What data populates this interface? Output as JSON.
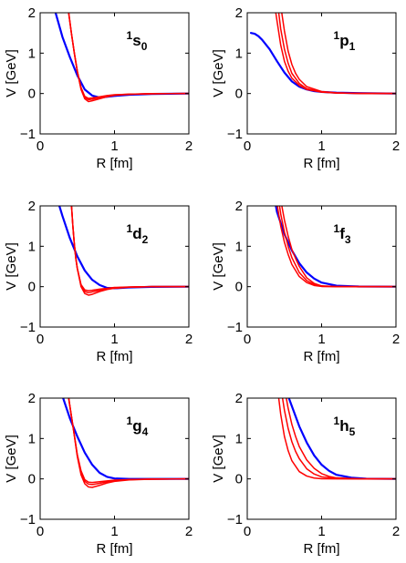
{
  "chart_data": [
    {
      "type": "line",
      "wave": {
        "sup": "1",
        "letter": "s",
        "sub": "0"
      },
      "xlabel": "R [fm]",
      "ylabel": "V [GeV]",
      "xlim": [
        0,
        2
      ],
      "ylim": [
        -1,
        2
      ],
      "xticks": [
        "0",
        "1",
        "2"
      ],
      "yticks": [
        "−1",
        "0",
        "1",
        "2"
      ],
      "grid": false,
      "series": [
        {
          "color": "#0000ff",
          "x": [
            0.2,
            0.3,
            0.4,
            0.5,
            0.6,
            0.7,
            0.8,
            1.0,
            1.2,
            1.5,
            2.0
          ],
          "y": [
            2.05,
            1.4,
            0.9,
            0.45,
            0.1,
            -0.05,
            -0.1,
            -0.06,
            -0.03,
            -0.01,
            0.0
          ]
        },
        {
          "color": "#ff0000",
          "x": [
            0.38,
            0.42,
            0.46,
            0.5,
            0.55,
            0.6,
            0.65,
            0.7,
            0.8,
            0.9,
            1.0,
            1.2,
            1.5,
            2.0
          ],
          "y": [
            2.05,
            1.5,
            1.0,
            0.55,
            0.15,
            -0.07,
            -0.12,
            -0.11,
            -0.08,
            -0.05,
            -0.03,
            -0.015,
            -0.005,
            0.0
          ]
        },
        {
          "color": "#ff0000",
          "x": [
            0.38,
            0.42,
            0.46,
            0.5,
            0.55,
            0.6,
            0.65,
            0.7,
            0.8,
            0.9,
            1.0,
            1.2,
            1.5,
            2.0
          ],
          "y": [
            2.05,
            1.5,
            1.0,
            0.55,
            0.12,
            -0.1,
            -0.15,
            -0.14,
            -0.1,
            -0.06,
            -0.035,
            -0.015,
            -0.005,
            0.0
          ]
        },
        {
          "color": "#ff0000",
          "x": [
            0.38,
            0.42,
            0.46,
            0.5,
            0.55,
            0.6,
            0.65,
            0.7,
            0.8,
            0.9,
            1.0,
            1.2,
            1.5,
            2.0
          ],
          "y": [
            2.05,
            1.5,
            1.0,
            0.55,
            0.1,
            -0.13,
            -0.2,
            -0.18,
            -0.13,
            -0.08,
            -0.045,
            -0.02,
            -0.006,
            0.0
          ]
        }
      ]
    },
    {
      "type": "line",
      "wave": {
        "sup": "1",
        "letter": "p",
        "sub": "1"
      },
      "xlabel": "R [fm]",
      "ylabel": "V [GeV]",
      "xlim": [
        0,
        2
      ],
      "ylim": [
        -1,
        2
      ],
      "xticks": [
        "0",
        "1",
        "2"
      ],
      "yticks": [
        "−1",
        "0",
        "1",
        "2"
      ],
      "grid": false,
      "series": [
        {
          "color": "#0000ff",
          "x": [
            0.05,
            0.1,
            0.15,
            0.2,
            0.3,
            0.4,
            0.5,
            0.6,
            0.7,
            0.8,
            0.9,
            1.0,
            1.2,
            1.5,
            2.0
          ],
          "y": [
            1.5,
            1.48,
            1.42,
            1.33,
            1.1,
            0.8,
            0.52,
            0.3,
            0.17,
            0.1,
            0.06,
            0.04,
            0.02,
            0.01,
            0.0
          ]
        },
        {
          "color": "#ff0000",
          "x": [
            0.38,
            0.4,
            0.45,
            0.5,
            0.55,
            0.6,
            0.7,
            0.8,
            1.0,
            1.2,
            1.5,
            2.0
          ],
          "y": [
            2.05,
            1.8,
            1.2,
            0.8,
            0.55,
            0.38,
            0.2,
            0.1,
            0.035,
            0.012,
            0.003,
            0.0
          ]
        },
        {
          "color": "#ff0000",
          "x": [
            0.42,
            0.45,
            0.5,
            0.55,
            0.6,
            0.7,
            0.8,
            1.0,
            1.2,
            1.5,
            2.0
          ],
          "y": [
            2.05,
            1.6,
            1.1,
            0.75,
            0.5,
            0.25,
            0.12,
            0.04,
            0.015,
            0.004,
            0.0
          ]
        },
        {
          "color": "#ff0000",
          "x": [
            0.46,
            0.5,
            0.55,
            0.6,
            0.65,
            0.7,
            0.8,
            1.0,
            1.2,
            1.5,
            2.0
          ],
          "y": [
            2.05,
            1.55,
            1.05,
            0.72,
            0.5,
            0.35,
            0.17,
            0.05,
            0.018,
            0.004,
            0.0
          ]
        }
      ]
    },
    {
      "type": "line",
      "wave": {
        "sup": "1",
        "letter": "d",
        "sub": "2"
      },
      "xlabel": "R [fm]",
      "ylabel": "V [GeV]",
      "xlim": [
        0,
        2
      ],
      "ylim": [
        -1,
        2
      ],
      "xticks": [
        "0",
        "1",
        "2"
      ],
      "yticks": [
        "−1",
        "0",
        "1",
        "2"
      ],
      "grid": false,
      "series": [
        {
          "color": "#0000ff",
          "x": [
            0.25,
            0.3,
            0.4,
            0.5,
            0.6,
            0.7,
            0.8,
            0.9,
            1.0,
            1.2,
            1.5,
            2.0
          ],
          "y": [
            2.05,
            1.75,
            1.2,
            0.75,
            0.4,
            0.17,
            0.04,
            -0.03,
            -0.04,
            -0.02,
            -0.005,
            0.0
          ]
        },
        {
          "color": "#ff0000",
          "x": [
            0.42,
            0.44,
            0.46,
            0.48,
            0.5,
            0.55,
            0.6,
            0.65,
            0.7,
            0.8,
            0.9,
            1.0,
            1.2,
            1.5,
            2.0
          ],
          "y": [
            2.05,
            1.5,
            1.05,
            0.7,
            0.45,
            0.05,
            -0.08,
            -0.1,
            -0.09,
            -0.06,
            -0.04,
            -0.02,
            -0.008,
            0.0,
            0.0
          ]
        },
        {
          "color": "#ff0000",
          "x": [
            0.42,
            0.44,
            0.46,
            0.48,
            0.5,
            0.55,
            0.6,
            0.65,
            0.7,
            0.8,
            0.9,
            1.0,
            1.2,
            1.5,
            2.0
          ],
          "y": [
            2.05,
            1.5,
            1.05,
            0.7,
            0.45,
            0.03,
            -0.12,
            -0.15,
            -0.13,
            -0.09,
            -0.05,
            -0.03,
            -0.01,
            0.0,
            0.0
          ]
        },
        {
          "color": "#ff0000",
          "x": [
            0.42,
            0.44,
            0.46,
            0.48,
            0.5,
            0.55,
            0.6,
            0.65,
            0.7,
            0.8,
            0.9,
            1.0,
            1.2,
            1.5,
            2.0
          ],
          "y": [
            2.05,
            1.5,
            1.05,
            0.7,
            0.45,
            0.0,
            -0.17,
            -0.21,
            -0.19,
            -0.12,
            -0.07,
            -0.04,
            -0.012,
            0.0,
            0.0
          ]
        }
      ]
    },
    {
      "type": "line",
      "wave": {
        "sup": "1",
        "letter": "f",
        "sub": "3"
      },
      "xlabel": "R [fm]",
      "ylabel": "V [GeV]",
      "xlim": [
        0,
        2
      ],
      "ylim": [
        -1,
        2
      ],
      "xticks": [
        "0",
        "1",
        "2"
      ],
      "yticks": [
        "−1",
        "0",
        "1",
        "2"
      ],
      "grid": false,
      "series": [
        {
          "color": "#0000ff",
          "x": [
            0.38,
            0.4,
            0.5,
            0.6,
            0.7,
            0.8,
            0.9,
            1.0,
            1.2,
            1.5,
            2.0
          ],
          "y": [
            2.05,
            1.85,
            1.3,
            0.9,
            0.58,
            0.35,
            0.2,
            0.1,
            0.025,
            0.003,
            0.0
          ]
        },
        {
          "color": "#ff0000",
          "x": [
            0.4,
            0.45,
            0.5,
            0.55,
            0.6,
            0.7,
            0.8,
            0.9,
            1.0,
            1.2,
            1.5,
            2.0
          ],
          "y": [
            2.05,
            1.5,
            1.1,
            0.8,
            0.55,
            0.25,
            0.1,
            0.03,
            0.005,
            0.0,
            0.0,
            0.0
          ]
        },
        {
          "color": "#ff0000",
          "x": [
            0.43,
            0.45,
            0.5,
            0.55,
            0.6,
            0.7,
            0.8,
            0.9,
            1.0,
            1.2,
            1.5,
            2.0
          ],
          "y": [
            2.05,
            1.8,
            1.35,
            1.0,
            0.72,
            0.35,
            0.15,
            0.05,
            0.01,
            0.0,
            0.0,
            0.0
          ]
        },
        {
          "color": "#ff0000",
          "x": [
            0.46,
            0.5,
            0.55,
            0.6,
            0.65,
            0.7,
            0.8,
            0.9,
            1.0,
            1.2,
            1.5,
            2.0
          ],
          "y": [
            2.05,
            1.65,
            1.25,
            0.92,
            0.7,
            0.5,
            0.22,
            0.08,
            0.02,
            0.0,
            0.0,
            0.0
          ]
        }
      ]
    },
    {
      "type": "line",
      "wave": {
        "sup": "1",
        "letter": "g",
        "sub": "4"
      },
      "xlabel": "R [fm]",
      "ylabel": "V [GeV]",
      "xlim": [
        0,
        2
      ],
      "ylim": [
        -1,
        2
      ],
      "xticks": [
        "0",
        "1",
        "2"
      ],
      "yticks": [
        "−1",
        "0",
        "1",
        "2"
      ],
      "grid": false,
      "series": [
        {
          "color": "#0000ff",
          "x": [
            0.3,
            0.4,
            0.5,
            0.6,
            0.7,
            0.8,
            0.9,
            1.0,
            1.2,
            1.5,
            2.0
          ],
          "y": [
            2.05,
            1.5,
            1.05,
            0.65,
            0.35,
            0.15,
            0.05,
            0.01,
            0.0,
            0.0,
            0.0
          ]
        },
        {
          "color": "#ff0000",
          "x": [
            0.38,
            0.4,
            0.45,
            0.5,
            0.55,
            0.6,
            0.65,
            0.7,
            0.8,
            0.9,
            1.0,
            1.2,
            1.5,
            2.0
          ],
          "y": [
            2.05,
            1.8,
            1.2,
            0.6,
            0.2,
            -0.02,
            -0.08,
            -0.09,
            -0.07,
            -0.05,
            -0.03,
            -0.015,
            -0.005,
            0.0
          ]
        },
        {
          "color": "#ff0000",
          "x": [
            0.38,
            0.4,
            0.45,
            0.5,
            0.55,
            0.6,
            0.65,
            0.7,
            0.8,
            0.9,
            1.0,
            1.2,
            1.5,
            2.0
          ],
          "y": [
            2.05,
            1.8,
            1.2,
            0.58,
            0.15,
            -0.06,
            -0.13,
            -0.14,
            -0.11,
            -0.07,
            -0.045,
            -0.02,
            -0.006,
            0.0
          ]
        },
        {
          "color": "#ff0000",
          "x": [
            0.38,
            0.4,
            0.45,
            0.5,
            0.55,
            0.6,
            0.65,
            0.7,
            0.8,
            0.9,
            1.0,
            1.2,
            1.5,
            2.0
          ],
          "y": [
            2.05,
            1.8,
            1.2,
            0.55,
            0.1,
            -0.12,
            -0.2,
            -0.21,
            -0.16,
            -0.1,
            -0.06,
            -0.025,
            -0.008,
            0.0
          ]
        }
      ]
    },
    {
      "type": "line",
      "wave": {
        "sup": "1",
        "letter": "h",
        "sub": "5"
      },
      "xlabel": "R [fm]",
      "ylabel": "V [GeV]",
      "xlim": [
        0,
        2
      ],
      "ylim": [
        -1,
        2
      ],
      "xticks": [
        "0",
        "1",
        "2"
      ],
      "yticks": [
        "−1",
        "0",
        "1",
        "2"
      ],
      "grid": false,
      "series": [
        {
          "color": "#0000ff",
          "x": [
            0.55,
            0.6,
            0.7,
            0.8,
            0.9,
            1.0,
            1.1,
            1.2,
            1.4,
            1.6,
            2.0
          ],
          "y": [
            2.05,
            1.8,
            1.3,
            0.9,
            0.58,
            0.35,
            0.2,
            0.1,
            0.03,
            0.005,
            0.0
          ]
        },
        {
          "color": "#ff0000",
          "x": [
            0.42,
            0.45,
            0.5,
            0.55,
            0.6,
            0.7,
            0.8,
            0.9,
            1.0,
            1.2,
            1.5,
            2.0
          ],
          "y": [
            2.05,
            1.6,
            1.05,
            0.7,
            0.45,
            0.18,
            0.07,
            0.02,
            0.005,
            0.0,
            0.0,
            0.0
          ]
        },
        {
          "color": "#ff0000",
          "x": [
            0.47,
            0.5,
            0.55,
            0.6,
            0.65,
            0.7,
            0.8,
            0.9,
            1.0,
            1.2,
            1.5,
            2.0
          ],
          "y": [
            2.05,
            1.7,
            1.25,
            0.92,
            0.68,
            0.5,
            0.25,
            0.12,
            0.05,
            0.008,
            0.0,
            0.0
          ]
        },
        {
          "color": "#ff0000",
          "x": [
            0.52,
            0.55,
            0.6,
            0.65,
            0.7,
            0.8,
            0.9,
            1.0,
            1.1,
            1.2,
            1.5,
            2.0
          ],
          "y": [
            2.05,
            1.75,
            1.35,
            1.05,
            0.8,
            0.47,
            0.26,
            0.13,
            0.06,
            0.025,
            0.0,
            0.0
          ]
        }
      ]
    }
  ]
}
